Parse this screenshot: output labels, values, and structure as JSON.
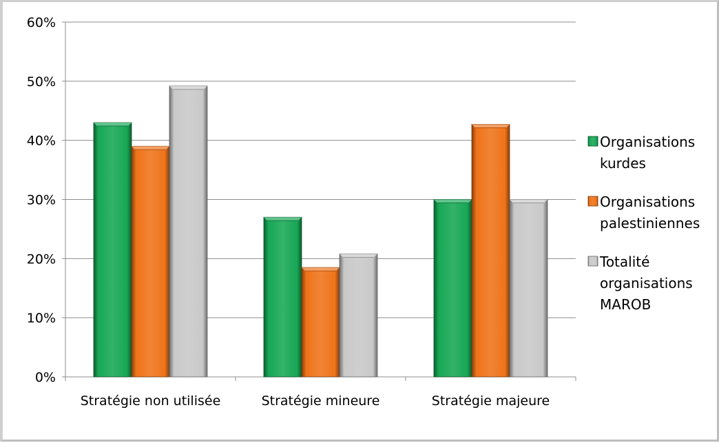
{
  "chart_data": {
    "type": "bar",
    "categories": [
      "Stratégie non utilisée",
      "Stratégie mineure",
      "Stratégie majeure"
    ],
    "series": [
      {
        "name": "Organisations kurdes",
        "legend_lines": [
          "Organisations",
          "kurdes"
        ],
        "values": [
          43,
          27,
          30
        ],
        "color": "#17a755"
      },
      {
        "name": "Organisations palestiniennes",
        "legend_lines": [
          "Organisations",
          "palestiniennes"
        ],
        "values": [
          39,
          18.5,
          42.7
        ],
        "color": "#ef7319"
      },
      {
        "name": "Totalité organisations MAROB",
        "legend_lines": [
          "Totalité",
          "organisations",
          "MAROB"
        ],
        "values": [
          49.2,
          20.8,
          30
        ],
        "color": "#c9c9c9"
      }
    ],
    "y_ticks": [
      "0%",
      "10%",
      "20%",
      "30%",
      "40%",
      "50%",
      "60%"
    ],
    "ylim": [
      0,
      60
    ],
    "grid": true,
    "legend_position": "right",
    "title": "",
    "xlabel": "",
    "ylabel": ""
  }
}
